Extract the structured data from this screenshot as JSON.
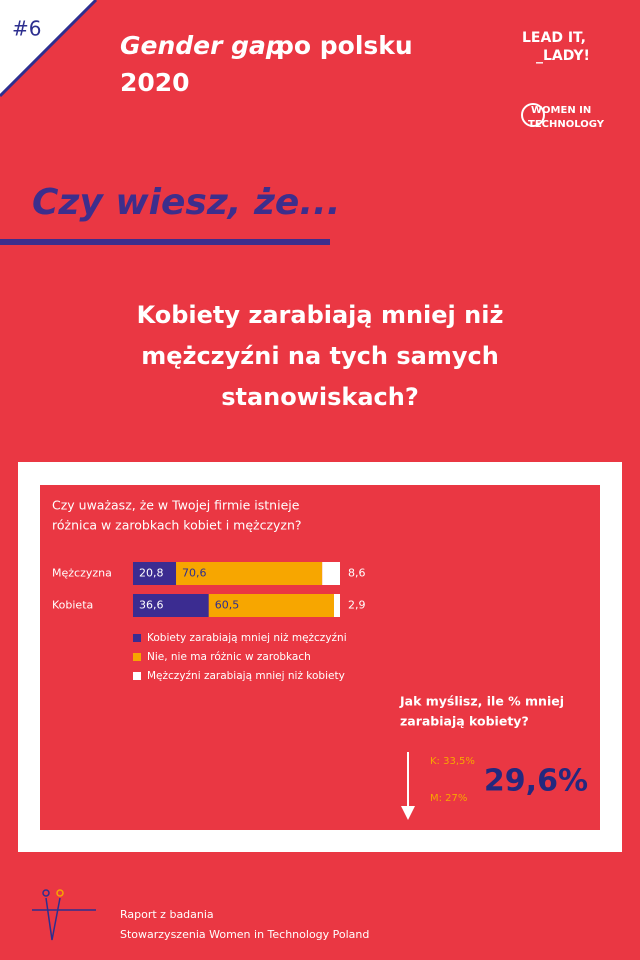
{
  "badge": "#6",
  "header": {
    "title_italic": "Gender gap",
    "title_rest": "po polsku",
    "title_year": "2020"
  },
  "logos": {
    "lead_line1": "LEAD IT,",
    "lead_line2": "_LADY!",
    "wit_line1": "WOMEN IN",
    "wit_line2": "TECHNOLOGY"
  },
  "intro": "Czy wiesz, że...",
  "question_lines": [
    "Kobiety zarabiają mniej niż",
    "mężczyźni na tych samych",
    "stanowiskach?"
  ],
  "chart_data": {
    "type": "stacked-bar-horizontal",
    "title_lines": [
      "Czy uważasz, że w Twojej firmie istnieje",
      "różnica w zarobkach kobiet i mężczyzn?"
    ],
    "categories": [
      "Mężczyzna",
      "Kobieta"
    ],
    "series": [
      {
        "name": "Kobiety zarabiają mniej niż mężczyźni",
        "color": "#3b2c91",
        "values": [
          20.8,
          36.6
        ],
        "value_labels": [
          "20,8",
          "36,6"
        ]
      },
      {
        "name": "Nie, nie ma różnic w zarobkach",
        "color": "#f7a600",
        "values": [
          70.6,
          60.5
        ],
        "value_labels": [
          "70,6",
          "60,5"
        ]
      },
      {
        "name": "Mężczyźni zarabiają mniej niż kobiety",
        "color": "#ffffff",
        "values": [
          8.6,
          2.9
        ],
        "value_labels": [
          "8,6",
          "2,9"
        ]
      }
    ]
  },
  "callout": {
    "question_lines": [
      "Jak myślisz, ile % mniej",
      "zarabiają kobiety?"
    ],
    "women": "K: 33,5%",
    "men": "M: 27%",
    "actual": "29,6%"
  },
  "footer": {
    "line1": "Raport z badania",
    "line2": "Stowarzyszenia Women in Technology Poland"
  }
}
